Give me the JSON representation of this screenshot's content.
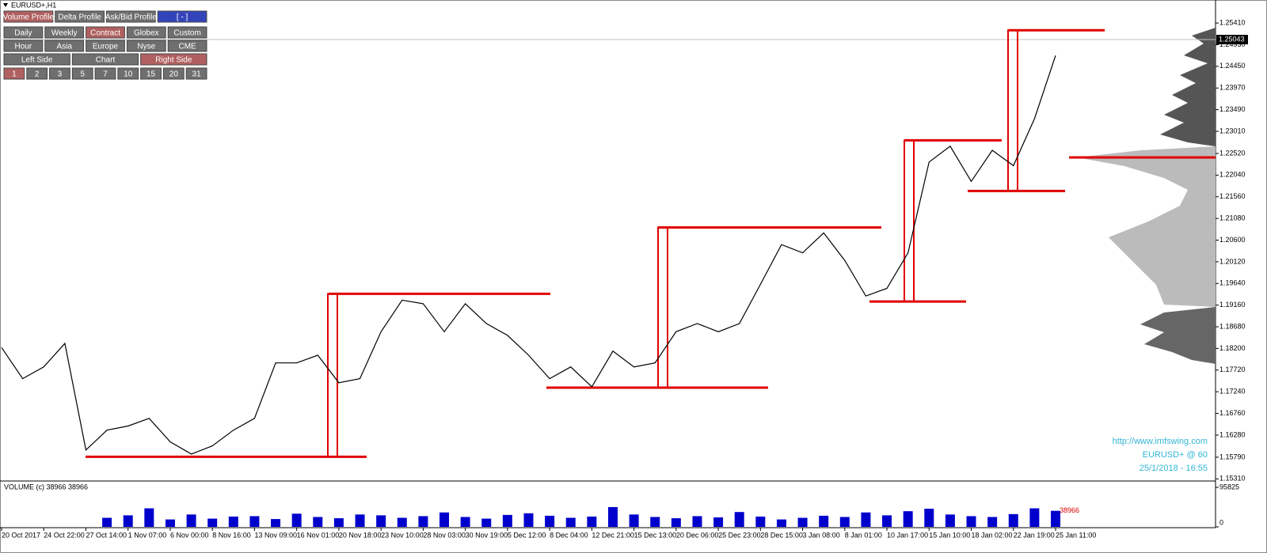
{
  "window_title": "EURUSD+,H1",
  "toolbar": {
    "rows": [
      [
        {
          "label": "Volume Profile",
          "active": true
        },
        {
          "label": "Delta Profile",
          "active": false
        },
        {
          "label": "Ask/Bid Profile",
          "active": false
        },
        {
          "label": "[ - ]",
          "active": false
        }
      ],
      [
        {
          "label": "Daily",
          "active": false
        },
        {
          "label": "Weekly",
          "active": false
        },
        {
          "label": "Contract",
          "active": true
        },
        {
          "label": "Globex",
          "active": false
        },
        {
          "label": "Custom",
          "active": false
        }
      ],
      [
        {
          "label": "Hour",
          "active": false
        },
        {
          "label": "Asia",
          "active": false
        },
        {
          "label": "Europe",
          "active": false
        },
        {
          "label": "Nyse",
          "active": false
        },
        {
          "label": "CME",
          "active": false
        }
      ],
      [
        {
          "label": "Left Side",
          "active": false
        },
        {
          "label": "Chart",
          "active": false
        },
        {
          "label": "Right Side",
          "active": true
        }
      ],
      [
        {
          "label": "1",
          "active": true
        },
        {
          "label": "2",
          "active": false
        },
        {
          "label": "3",
          "active": false
        },
        {
          "label": "5",
          "active": false
        },
        {
          "label": "7",
          "active": false
        },
        {
          "label": "10",
          "active": false
        },
        {
          "label": "15",
          "active": false
        },
        {
          "label": "20",
          "active": false
        },
        {
          "label": "31",
          "active": false
        }
      ]
    ]
  },
  "watermark": [
    "http://www.imfswing.com",
    "EURUSD+ @ 60",
    "25/1/2018 - 16:55"
  ],
  "chart_data": [
    {
      "type": "line",
      "color": "#000000",
      "categories": [
        "20 Oct 2017",
        null,
        "24 Oct 22:00",
        null,
        "27 Oct 14:00",
        null,
        "1 Nov 07:00",
        null,
        "6 Nov 00:00",
        null,
        "8 Nov 16:00",
        null,
        "13 Nov 09:00",
        null,
        "16 Nov 01:00",
        null,
        "20 Nov 18:00",
        null,
        "23 Nov 10:00",
        null,
        "28 Nov 03:00",
        null,
        "30 Nov 19:00",
        null,
        "5 Dec 12:00",
        null,
        "8 Dec 04:00",
        null,
        "12 Dec 21:00",
        null,
        "15 Dec 13:00",
        null,
        "20 Dec 06:00",
        null,
        "25 Dec 23:00",
        null,
        "28 Dec 15:00",
        null,
        "3 Jan 08:00",
        null,
        "8 Jan 01:00",
        null,
        "10 Jan 17:00",
        null,
        "15 Jan 10:00",
        null,
        "18 Jan 02:00",
        null,
        "22 Jan 19:00",
        null,
        "25 Jan 11:00"
      ],
      "values": [
        1.1822,
        1.1753,
        1.1779,
        1.1831,
        1.1595,
        1.1639,
        1.1648,
        1.1665,
        1.1613,
        1.1586,
        1.1604,
        1.1639,
        1.1665,
        1.1788,
        1.1788,
        1.1805,
        1.1744,
        1.1753,
        1.1857,
        1.1927,
        1.1919,
        1.1857,
        1.1919,
        1.1875,
        1.1849,
        1.1805,
        1.1753,
        1.1779,
        1.1735,
        1.1814,
        1.1779,
        1.1788,
        1.1857,
        1.1875,
        1.1857,
        1.1875,
        1.1962,
        1.205,
        1.2032,
        1.2076,
        1.2015,
        1.1936,
        1.1953,
        1.2032,
        1.2233,
        1.2268,
        1.219,
        1.2259,
        1.2225,
        1.2329,
        1.2469
      ],
      "current_price": 1.25043,
      "levels_color": "#e00000",
      "levels": [
        {
          "low": 1.158,
          "high": 1.1941
        },
        {
          "low": 1.1733,
          "high": 1.2088
        },
        {
          "low": 1.1924,
          "high": 1.2281
        },
        {
          "low": 1.2169,
          "high": 1.2525
        }
      ],
      "ylim": [
        1.1528,
        1.2592
      ],
      "yticks": [
        {
          "value": 1.2541,
          "label": "1.25410"
        },
        {
          "value": 1.2493,
          "label": "1.24930"
        },
        {
          "value": 1.2445,
          "label": "1.24450"
        },
        {
          "value": 1.2397,
          "label": "1.23970"
        },
        {
          "value": 1.2349,
          "label": "1.23490"
        },
        {
          "value": 1.2301,
          "label": "1.23010"
        },
        {
          "value": 1.2252,
          "label": "1.22520"
        },
        {
          "value": 1.2204,
          "label": "1.22040"
        },
        {
          "value": 1.2156,
          "label": "1.21560"
        },
        {
          "value": 1.2108,
          "label": "1.21080"
        },
        {
          "value": 1.206,
          "label": "1.20600"
        },
        {
          "value": 1.2012,
          "label": "1.20120"
        },
        {
          "value": 1.1964,
          "label": "1.19640"
        },
        {
          "value": 1.1916,
          "label": "1.19160"
        },
        {
          "value": 1.1868,
          "label": "1.18680"
        },
        {
          "value": 1.182,
          "label": "1.18200"
        },
        {
          "value": 1.1772,
          "label": "1.17720"
        },
        {
          "value": 1.1724,
          "label": "1.17240"
        },
        {
          "value": 1.1676,
          "label": "1.16760"
        },
        {
          "value": 1.1628,
          "label": "1.16280"
        },
        {
          "value": 1.1579,
          "label": "1.15790"
        },
        {
          "value": 1.1531,
          "label": "1.15310"
        }
      ]
    },
    {
      "type": "bar",
      "title": "VOLUME  (c) 38966 38966",
      "color": "#0000cd",
      "value_label_color": "#e00000",
      "values": [
        null,
        null,
        null,
        null,
        null,
        22000,
        28000,
        45000,
        18000,
        30000,
        20000,
        25000,
        26000,
        19000,
        32000,
        24000,
        21000,
        30000,
        28000,
        22000,
        26000,
        35000,
        24000,
        20000,
        29000,
        33000,
        27000,
        22000,
        25000,
        48000,
        30000,
        24000,
        21000,
        26000,
        23000,
        36000,
        25000,
        18000,
        22000,
        27000,
        24000,
        35000,
        28000,
        38000,
        44000,
        30000,
        26000,
        24000,
        31000,
        45000,
        38966
      ],
      "ylim": [
        0,
        95825
      ],
      "yticks": [
        95825,
        0
      ]
    }
  ]
}
